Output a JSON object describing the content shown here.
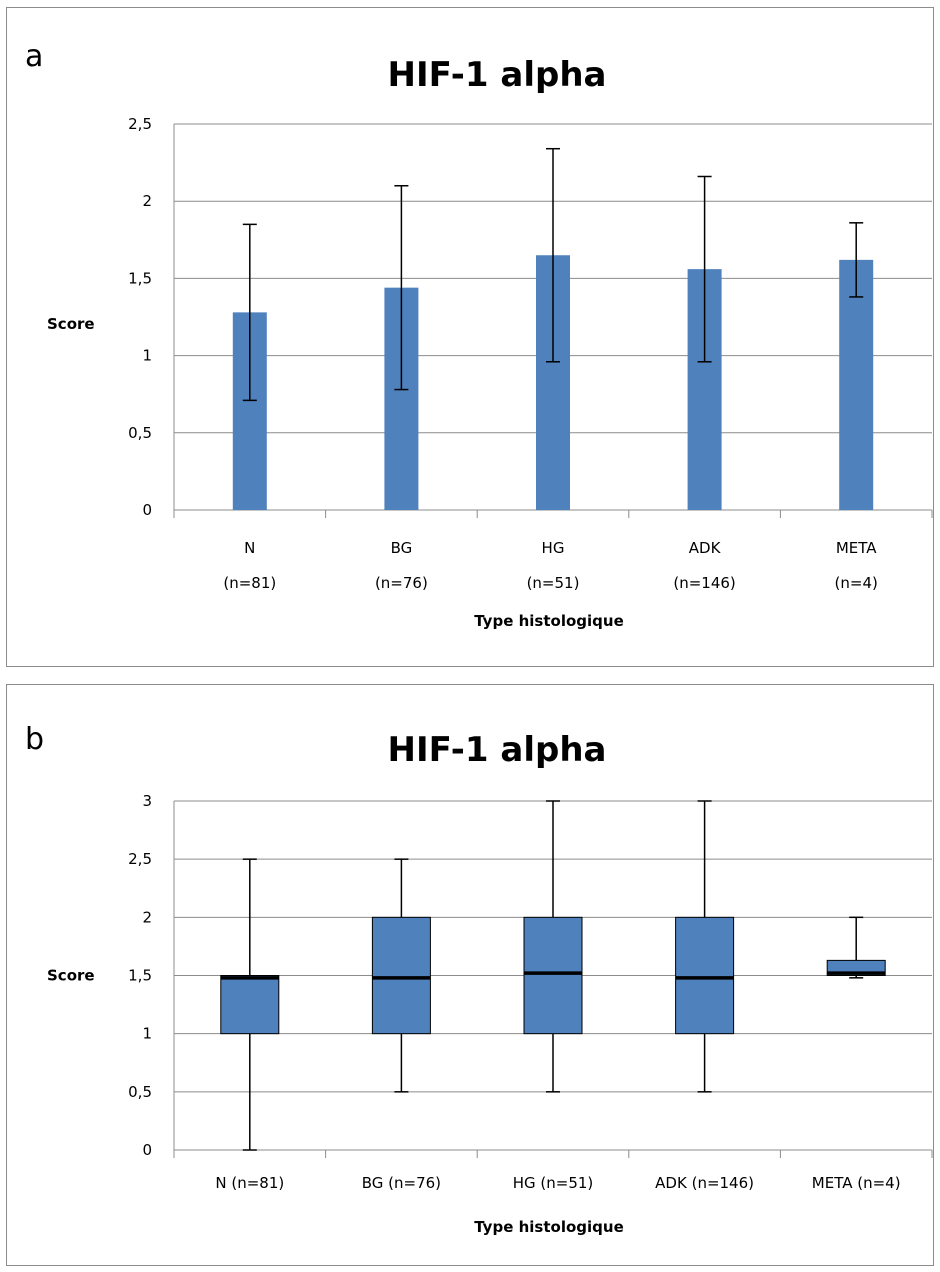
{
  "chart_data": [
    {
      "type": "bar",
      "panel_letter": "a",
      "title": "HIF-1 alpha",
      "ylabel": "Score",
      "xlabel": "Type histologique",
      "ylim": [
        0,
        2.5
      ],
      "yticks": [
        "0",
        "0,5",
        "1",
        "1,5",
        "2",
        "2,5"
      ],
      "categories": [
        {
          "name": "N",
          "n": "(n=81)"
        },
        {
          "name": "BG",
          "n": "(n=76)"
        },
        {
          "name": "HG",
          "n": "(n=51)"
        },
        {
          "name": "ADK",
          "n": "(n=146)"
        },
        {
          "name": "META",
          "n": "(n=4)"
        }
      ],
      "values": [
        1.28,
        1.44,
        1.65,
        1.56,
        1.62
      ],
      "error": [
        0.57,
        0.66,
        0.69,
        0.6,
        0.24
      ],
      "grid": true,
      "bar_color": "#4f81bd"
    },
    {
      "type": "box",
      "panel_letter": "b",
      "title": "HIF-1 alpha",
      "ylabel": "Score",
      "xlabel": "Type histologique",
      "ylim": [
        0,
        3
      ],
      "yticks": [
        "0",
        "0,5",
        "1",
        "1,5",
        "2",
        "2,5",
        "3"
      ],
      "categories": [
        "N (n=81)",
        "BG (n=76)",
        "HG (n=51)",
        "ADK (n=146)",
        "META (n=4)"
      ],
      "boxes": [
        {
          "min": 0,
          "q1": 1,
          "median": 1.48,
          "q3": 1.5,
          "max": 2.5
        },
        {
          "min": 0.5,
          "q1": 1,
          "median": 1.48,
          "q3": 2,
          "max": 2.5
        },
        {
          "min": 0.5,
          "q1": 1,
          "median": 1.52,
          "q3": 2,
          "max": 3
        },
        {
          "min": 0.5,
          "q1": 1,
          "median": 1.48,
          "q3": 2,
          "max": 3
        },
        {
          "min": 1.48,
          "q1": 1.5,
          "median": 1.52,
          "q3": 1.63,
          "max": 2
        }
      ],
      "grid": true,
      "box_color": "#4f81bd"
    }
  ]
}
